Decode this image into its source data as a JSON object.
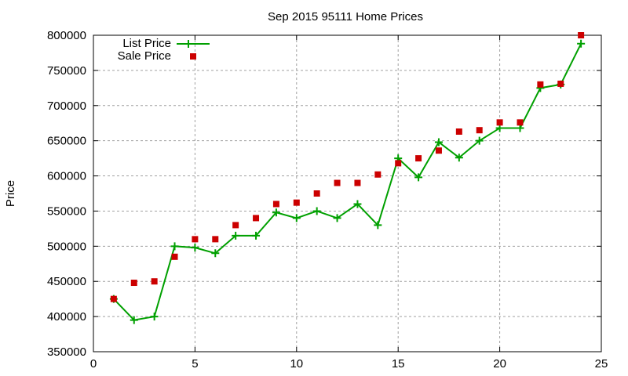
{
  "chart_data": {
    "type": "line",
    "title": "Sep 2015 95111 Home Prices",
    "xlabel": "",
    "ylabel": "Price",
    "xlim": [
      0,
      25
    ],
    "ylim": [
      350000,
      800000
    ],
    "xticks": [
      0,
      5,
      10,
      15,
      20,
      25
    ],
    "yticks": [
      350000,
      400000,
      450000,
      500000,
      550000,
      600000,
      650000,
      700000,
      750000,
      800000
    ],
    "grid": true,
    "legend_position": "top-left",
    "x": [
      1,
      2,
      3,
      4,
      5,
      6,
      7,
      8,
      9,
      10,
      11,
      12,
      13,
      14,
      15,
      16,
      17,
      18,
      19,
      20,
      21,
      22,
      23,
      24
    ],
    "series": [
      {
        "name": "List Price",
        "style": "linespoints",
        "color": "#00a000",
        "values": [
          425000,
          395000,
          400000,
          500000,
          498000,
          490000,
          515000,
          515000,
          548000,
          540000,
          550000,
          540000,
          560000,
          530000,
          625000,
          598000,
          648000,
          626000,
          650000,
          668000,
          668000,
          725000,
          730000,
          788000
        ]
      },
      {
        "name": "Sale Price",
        "style": "points",
        "color": "#cc0000",
        "values": [
          425000,
          448000,
          450000,
          485000,
          510000,
          510000,
          530000,
          540000,
          560000,
          562000,
          575000,
          590000,
          590000,
          602000,
          618000,
          625000,
          636000,
          663000,
          665000,
          676000,
          676000,
          730000,
          731000,
          800000
        ]
      }
    ]
  }
}
